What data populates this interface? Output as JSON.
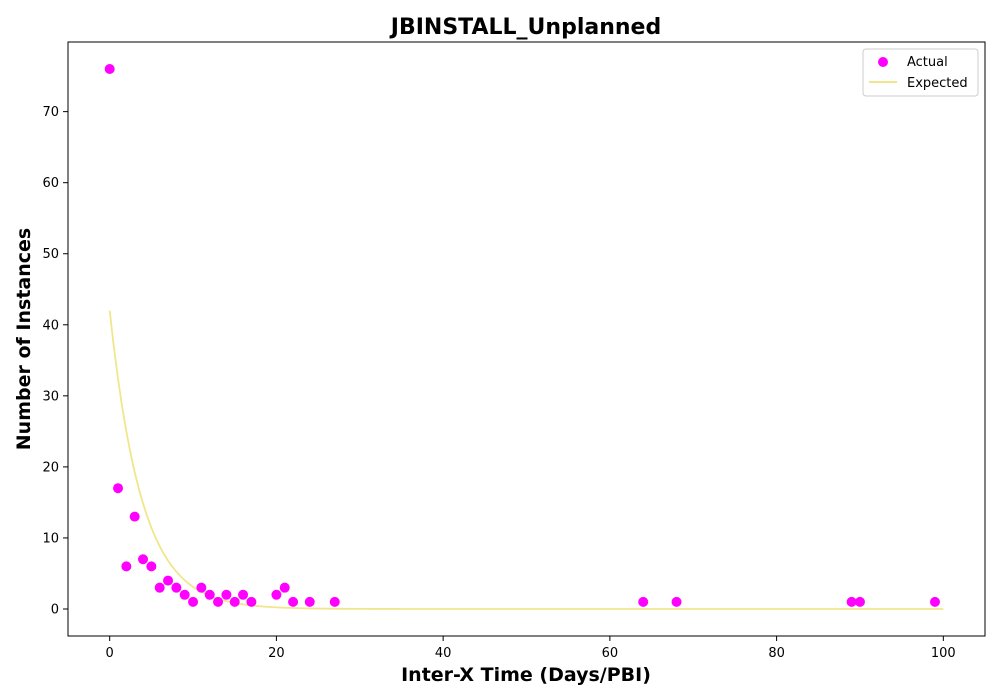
{
  "chart_data": {
    "type": "scatter",
    "title": "JBINSTALL_Unplanned",
    "xlabel": "Inter-X Time (Days/PBI)",
    "ylabel": "Number of Instances",
    "xlim": [
      -5,
      105
    ],
    "ylim": [
      -3.8,
      79.8
    ],
    "x_ticks": [
      0,
      20,
      40,
      60,
      80,
      100
    ],
    "y_ticks": [
      0,
      10,
      20,
      30,
      40,
      50,
      60,
      70
    ],
    "grid": false,
    "legend_position": "top-right",
    "series": [
      {
        "name": "Actual",
        "kind": "scatter",
        "color": "#ff00ff",
        "points": [
          [
            0,
            76
          ],
          [
            1,
            17
          ],
          [
            2,
            6
          ],
          [
            3,
            13
          ],
          [
            4,
            7
          ],
          [
            5,
            6
          ],
          [
            6,
            3
          ],
          [
            7,
            4
          ],
          [
            8,
            3
          ],
          [
            9,
            2
          ],
          [
            10,
            1
          ],
          [
            11,
            3
          ],
          [
            12,
            2
          ],
          [
            13,
            1
          ],
          [
            14,
            2
          ],
          [
            15,
            1
          ],
          [
            16,
            2
          ],
          [
            17,
            1
          ],
          [
            20,
            2
          ],
          [
            21,
            3
          ],
          [
            22,
            1
          ],
          [
            24,
            1
          ],
          [
            27,
            1
          ],
          [
            64,
            1
          ],
          [
            68,
            1
          ],
          [
            89,
            1
          ],
          [
            90,
            1
          ],
          [
            99,
            1
          ]
        ]
      },
      {
        "name": "Expected",
        "kind": "line",
        "color": "#f0e68c",
        "model": "exponential",
        "amplitude": 42,
        "rate": 0.26,
        "x_range": [
          0,
          100
        ]
      }
    ]
  }
}
